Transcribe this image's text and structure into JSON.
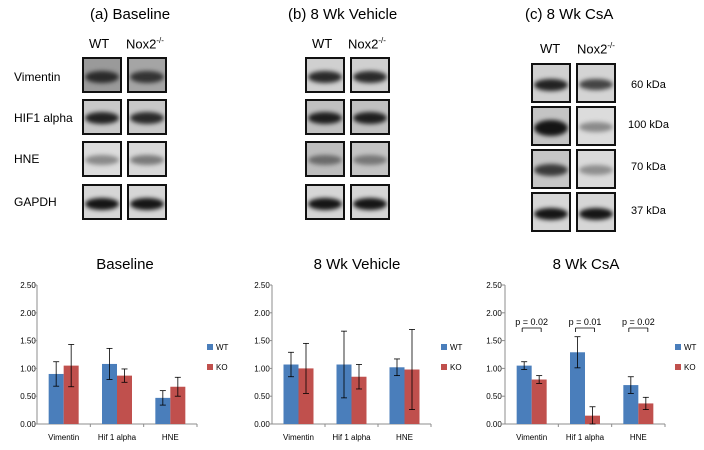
{
  "panels": [
    {
      "title": "(a) Baseline",
      "columns": [
        "WT",
        "Nox2"
      ],
      "column_superscript": "-/-",
      "row_labels": [
        "Vimentin",
        "HIF1 alpha",
        "HNE",
        "GAPDH"
      ],
      "size_labels": []
    },
    {
      "title": "(b) 8 Wk Vehicle",
      "columns": [
        "WT",
        "Nox2"
      ],
      "column_superscript": "-/-",
      "row_labels": [],
      "size_labels": []
    },
    {
      "title": "(c) 8 Wk CsA",
      "columns": [
        "WT",
        "Nox2"
      ],
      "column_superscript": "-/-",
      "row_labels": [],
      "size_labels": [
        "60 kDa",
        "100 kDa",
        "70 kDa",
        "37 kDa"
      ]
    }
  ],
  "colors": {
    "wt": "#4a7ebb",
    "ko": "#c0504d",
    "axis": "#8c8c8c"
  },
  "chart_data": [
    {
      "type": "bar",
      "title": "Baseline",
      "categories": [
        "Vimentin",
        "Hif 1 alpha",
        "HNE"
      ],
      "series": [
        {
          "name": "WT",
          "values": [
            0.9,
            1.08,
            0.47
          ],
          "errors": [
            0.22,
            0.28,
            0.13
          ]
        },
        {
          "name": "KO",
          "values": [
            1.05,
            0.87,
            0.67
          ],
          "errors": [
            0.38,
            0.12,
            0.17
          ]
        }
      ],
      "ylim": [
        0,
        2.5
      ],
      "yticks": [
        "0.00",
        "0.50",
        "1.00",
        "1.50",
        "2.00",
        "2.50"
      ],
      "legend": "right",
      "annotations": []
    },
    {
      "type": "bar",
      "title": "8 Wk Vehicle",
      "categories": [
        "Vimentin",
        "Hif 1 alpha",
        "HNE"
      ],
      "series": [
        {
          "name": "WT",
          "values": [
            1.07,
            1.07,
            1.02
          ],
          "errors": [
            0.22,
            0.6,
            0.15
          ]
        },
        {
          "name": "KO",
          "values": [
            1.0,
            0.85,
            0.98
          ],
          "errors": [
            0.45,
            0.22,
            0.72
          ]
        }
      ],
      "ylim": [
        0,
        2.5
      ],
      "yticks": [
        "0.00",
        "0.50",
        "1.00",
        "1.50",
        "2.00",
        "2.50"
      ],
      "legend": "right",
      "annotations": []
    },
    {
      "type": "bar",
      "title": "8 Wk CsA",
      "categories": [
        "Vimentin",
        "Hif 1 alpha",
        "HNE"
      ],
      "series": [
        {
          "name": "WT",
          "values": [
            1.05,
            1.29,
            0.7
          ],
          "errors": [
            0.07,
            0.28,
            0.15
          ]
        },
        {
          "name": "KO",
          "values": [
            0.8,
            0.15,
            0.37
          ],
          "errors": [
            0.07,
            0.16,
            0.11
          ]
        }
      ],
      "ylim": [
        0,
        2.5
      ],
      "yticks": [
        "0.00",
        "0.50",
        "1.00",
        "1.50",
        "2.00",
        "2.50"
      ],
      "legend": "right",
      "annotations": [
        {
          "category": "Vimentin",
          "text": "p = 0.02"
        },
        {
          "category": "Hif 1 alpha",
          "text": "p = 0.01"
        },
        {
          "category": "HNE",
          "text": "p = 0.02"
        }
      ]
    }
  ]
}
